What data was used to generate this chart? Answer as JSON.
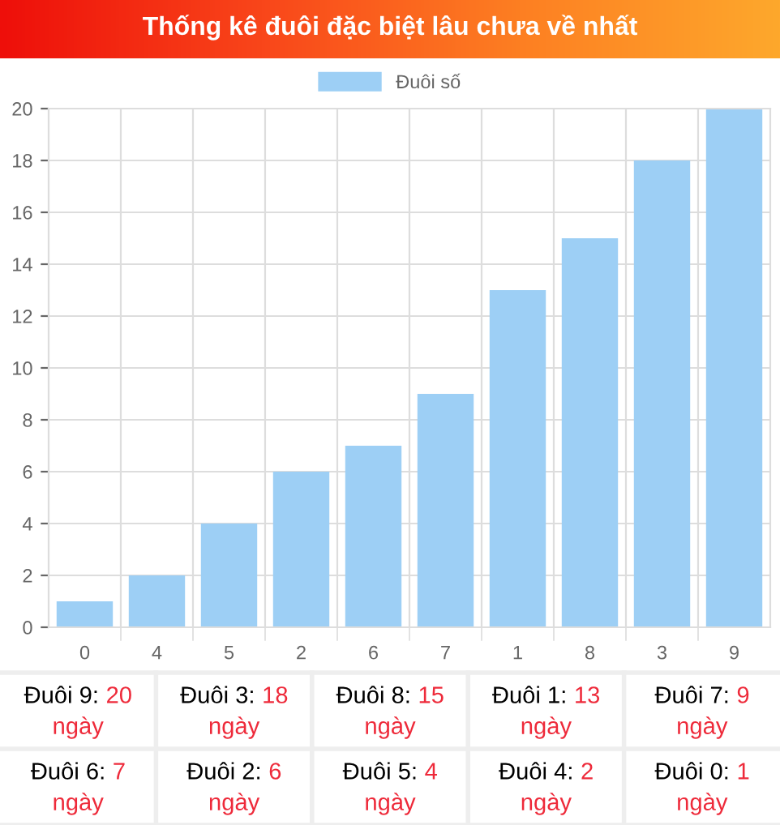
{
  "chart_data": {
    "type": "bar",
    "title": "Thống kê đuôi đặc biệt lâu chưa về nhất",
    "categories": [
      "0",
      "4",
      "5",
      "2",
      "6",
      "7",
      "1",
      "8",
      "3",
      "9"
    ],
    "series": [
      {
        "name": "Đuôi số",
        "color": "#9dcff5",
        "values": [
          1,
          2,
          4,
          6,
          7,
          9,
          13,
          15,
          18,
          20
        ]
      }
    ],
    "ylim": [
      0,
      20
    ],
    "yticks": [
      0,
      2,
      4,
      6,
      8,
      10,
      12,
      14,
      16,
      18,
      20
    ],
    "grid": true,
    "legend": "top",
    "annotations": [
      "Đuôi 9: 20 ngày",
      "Đuôi 3: 18 ngày",
      "Đuôi 8: 15 ngày",
      "Đuôi 1: 13 ngày",
      "Đuôi 7: 9 ngày",
      "Đuôi 6: 7 ngày",
      "Đuôi 2: 6 ngày",
      "Đuôi 5: 4 ngày",
      "Đuôi 4: 2 ngày",
      "Đuôi 0: 1 ngày"
    ]
  }
}
